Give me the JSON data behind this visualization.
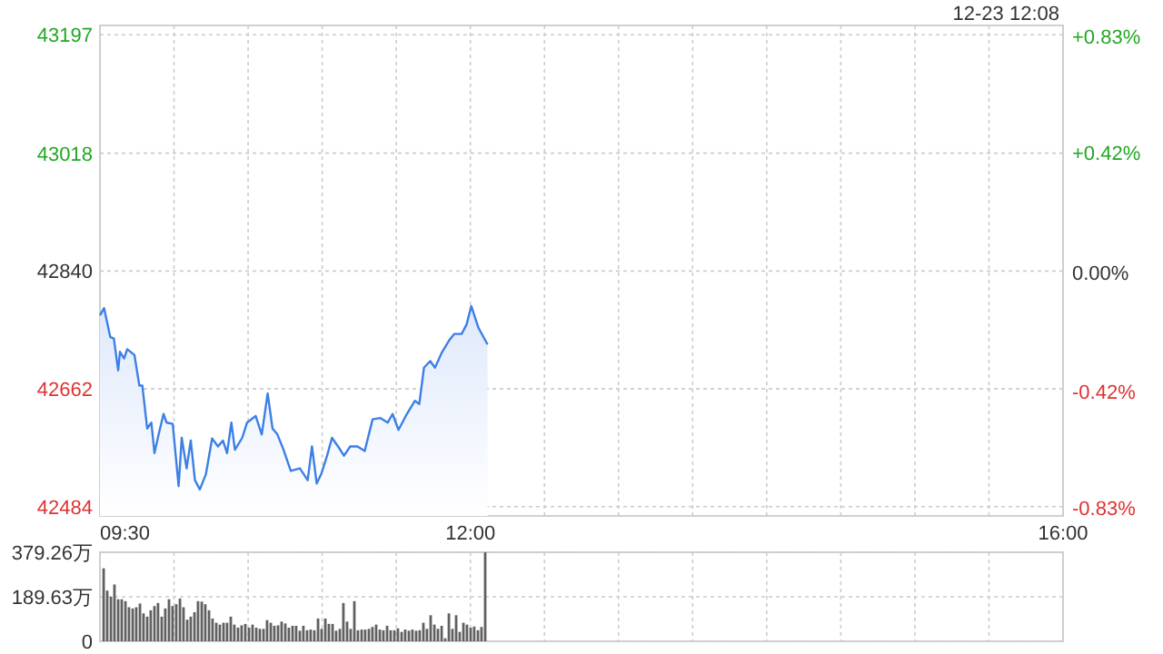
{
  "chart_data": [
    {
      "type": "area",
      "subtitle": "12-23 12:08",
      "xlim": [
        9.5,
        16
      ],
      "ylim": [
        42470,
        43211
      ],
      "y2lim": [
        -0.86,
        0.87
      ],
      "xticks": [
        {
          "value": 9.5,
          "label": "09:30"
        },
        {
          "value": 10,
          "label": null
        },
        {
          "value": 10.5,
          "label": null
        },
        {
          "value": 11,
          "label": null
        },
        {
          "value": 11.5,
          "label": null
        },
        {
          "value": 12,
          "label": "12:00"
        },
        {
          "value": 12.5,
          "label": null
        },
        {
          "value": 13,
          "label": null
        },
        {
          "value": 13.5,
          "label": null
        },
        {
          "value": 14,
          "label": null
        },
        {
          "value": 14.5,
          "label": null
        },
        {
          "value": 15,
          "label": null
        },
        {
          "value": 15.5,
          "label": null
        },
        {
          "value": 16,
          "label": "16:00"
        }
      ],
      "yticks": [
        43197,
        43018,
        42840,
        42662,
        42484
      ],
      "y2ticks": [
        {
          "value": 0.83,
          "label": "+0.83%"
        },
        {
          "value": 0.42,
          "label": "+0.42%"
        },
        {
          "value": 0,
          "label": "0.00%"
        },
        {
          "value": -0.42,
          "label": "-0.42%"
        },
        {
          "value": -0.83,
          "label": "-0.83%"
        }
      ],
      "grid": true,
      "marker": "none",
      "line_style": "solid",
      "series": [
        {
          "color": "#3d7fe6",
          "x": [
            9.5,
            9.528,
            9.57,
            9.594,
            9.623,
            9.635,
            9.663,
            9.684,
            9.733,
            9.766,
            9.786,
            9.819,
            9.847,
            9.868,
            9.896,
            9.929,
            9.95,
            9.991,
            10.031,
            10.052,
            10.085,
            10.113,
            10.141,
            10.174,
            10.215,
            10.257,
            10.297,
            10.33,
            10.358,
            10.387,
            10.411,
            10.46,
            10.493,
            10.551,
            10.592,
            10.632,
            10.665,
            10.698,
            10.739,
            10.788,
            10.849,
            10.902,
            10.931,
            10.963,
            10.993,
            11.033,
            11.066,
            11.107,
            11.147,
            11.189,
            11.238,
            11.287,
            11.34,
            11.393,
            11.442,
            11.475,
            11.515,
            11.564,
            11.626,
            11.655,
            11.687,
            11.729,
            11.761,
            11.81,
            11.859,
            11.892,
            11.941,
            11.974,
            12.006,
            12.055,
            12.116
          ],
          "values": [
            42773,
            42784,
            42740,
            42738,
            42690,
            42718,
            42708,
            42722,
            42713,
            42667,
            42667,
            42602,
            42611,
            42565,
            42593,
            42624,
            42611,
            42609,
            42515,
            42588,
            42542,
            42584,
            42524,
            42510,
            42533,
            42587,
            42575,
            42584,
            42565,
            42611,
            42570,
            42588,
            42611,
            42621,
            42593,
            42655,
            42602,
            42593,
            42570,
            42538,
            42542,
            42524,
            42575,
            42519,
            42533,
            42561,
            42588,
            42575,
            42561,
            42575,
            42575,
            42568,
            42616,
            42618,
            42611,
            42624,
            42600,
            42621,
            42644,
            42639,
            42694,
            42704,
            42694,
            42718,
            42736,
            42745,
            42745,
            42759,
            42787,
            42754,
            42729
          ]
        }
      ]
    },
    {
      "type": "bar",
      "xlim": [
        9.5,
        16
      ],
      "ylim": [
        0,
        379.26
      ],
      "tick_labels": "y",
      "grid": true,
      "xticks": [
        9.5,
        10,
        10.5,
        11,
        11.5,
        12,
        12.5,
        13,
        13.5,
        14,
        14.5,
        15,
        15.5,
        16
      ],
      "yticks": [
        {
          "value": 379.26,
          "label": "379.26万"
        },
        {
          "value": 189.63,
          "label": "189.63万"
        },
        0
      ],
      "series": [
        {
          "color": "#606060",
          "x": [
            9.525,
            9.549,
            9.574,
            9.598,
            9.623,
            9.647,
            9.672,
            9.696,
            9.721,
            9.745,
            9.77,
            9.794,
            9.819,
            9.843,
            9.868,
            9.892,
            9.917,
            9.941,
            9.966,
            9.99,
            10.015,
            10.04,
            10.064,
            10.089,
            10.113,
            10.138,
            10.162,
            10.187,
            10.211,
            10.236,
            10.26,
            10.285,
            10.309,
            10.334,
            10.358,
            10.383,
            10.407,
            10.432,
            10.456,
            10.481,
            10.506,
            10.53,
            10.555,
            10.579,
            10.604,
            10.628,
            10.653,
            10.677,
            10.702,
            10.726,
            10.751,
            10.775,
            10.8,
            10.824,
            10.849,
            10.873,
            10.898,
            10.922,
            10.947,
            10.972,
            10.996,
            11.021,
            11.045,
            11.07,
            11.094,
            11.119,
            11.143,
            11.168,
            11.192,
            11.217,
            11.241,
            11.266,
            11.29,
            11.315,
            11.339,
            11.364,
            11.389,
            11.413,
            11.438,
            11.462,
            11.487,
            11.511,
            11.536,
            11.56,
            11.585,
            11.609,
            11.634,
            11.658,
            11.683,
            11.707,
            11.732,
            11.757,
            11.781,
            11.806,
            11.83,
            11.855,
            11.879,
            11.904,
            11.928,
            11.953,
            11.977,
            12.002,
            12.026,
            12.051,
            12.075,
            12.1
          ],
          "values": [
            311,
            216,
            190,
            242,
            179,
            179,
            171,
            145,
            140,
            145,
            161,
            119,
            105,
            132,
            150,
            163,
            105,
            140,
            179,
            150,
            158,
            182,
            145,
            92,
            105,
            124,
            171,
            169,
            158,
            132,
            97,
            79,
            71,
            79,
            79,
            105,
            71,
            58,
            68,
            74,
            58,
            71,
            58,
            53,
            53,
            90,
            79,
            66,
            68,
            84,
            76,
            58,
            66,
            66,
            45,
            66,
            47,
            50,
            47,
            97,
            53,
            97,
            74,
            74,
            45,
            53,
            163,
            84,
            53,
            171,
            47,
            50,
            50,
            53,
            61,
            71,
            50,
            47,
            66,
            47,
            47,
            55,
            40,
            50,
            45,
            50,
            45,
            47,
            79,
            53,
            111,
            71,
            53,
            66,
            13,
            119,
            53,
            111,
            40,
            79,
            71,
            58,
            63,
            47,
            61,
            379
          ]
        }
      ]
    }
  ]
}
